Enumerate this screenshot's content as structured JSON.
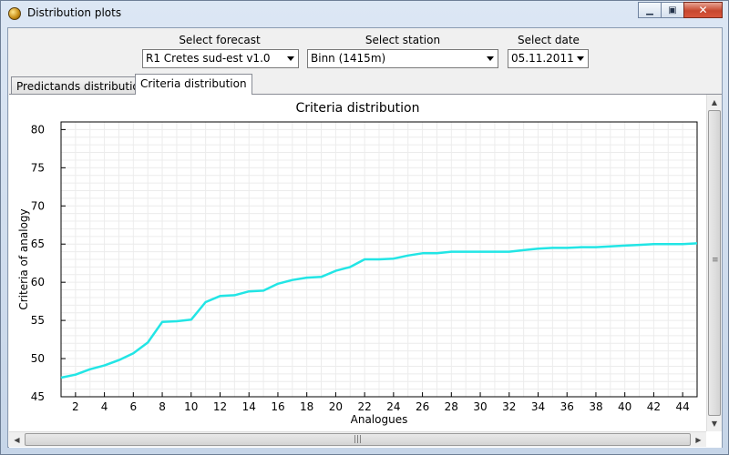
{
  "window": {
    "title": "Distribution plots"
  },
  "controls": {
    "forecast_label": "Select forecast",
    "forecast_value": "R1 Cretes sud-est v1.0",
    "station_label": "Select station",
    "station_value": "Binn (1415m)",
    "date_label": "Select date",
    "date_value": "05.11.2011"
  },
  "tabs": [
    {
      "label": "Predictands distribution",
      "active": false
    },
    {
      "label": "Criteria distribution",
      "active": true
    }
  ],
  "chart_data": {
    "type": "line",
    "title": "Criteria distribution",
    "xlabel": "Analogues",
    "ylabel": "Criteria of analogy",
    "xlim": [
      1,
      45
    ],
    "ylim": [
      45,
      81
    ],
    "xticks": [
      2,
      4,
      6,
      8,
      10,
      12,
      14,
      16,
      18,
      20,
      22,
      24,
      26,
      28,
      30,
      32,
      34,
      36,
      38,
      40,
      42,
      44
    ],
    "yticks": [
      45,
      50,
      55,
      60,
      65,
      70,
      75,
      80
    ],
    "grid": true,
    "line_color": "#22e5e5",
    "series": [
      {
        "x": [
          1,
          2,
          3,
          4,
          5,
          6,
          7,
          8,
          9,
          10,
          11,
          12,
          13,
          14,
          15,
          16,
          17,
          18,
          19,
          20,
          21,
          22,
          23,
          24,
          25,
          26,
          27,
          28,
          29,
          30,
          31,
          32,
          33,
          34,
          35,
          36,
          37,
          38,
          39,
          40,
          41,
          42,
          43,
          44,
          45
        ],
        "values": [
          47.5,
          47.9,
          48.6,
          49.1,
          49.8,
          50.7,
          52.1,
          54.8,
          54.9,
          55.1,
          57.4,
          58.2,
          58.3,
          58.8,
          58.9,
          59.8,
          60.3,
          60.6,
          60.7,
          61.5,
          62.0,
          63.0,
          63.0,
          63.1,
          63.5,
          63.8,
          63.8,
          64.0,
          64.0,
          64.0,
          64.0,
          64.0,
          64.2,
          64.4,
          64.5,
          64.5,
          64.6,
          64.6,
          64.7,
          64.8,
          64.9,
          65.0,
          65.0,
          65.0,
          65.1
        ]
      }
    ]
  }
}
